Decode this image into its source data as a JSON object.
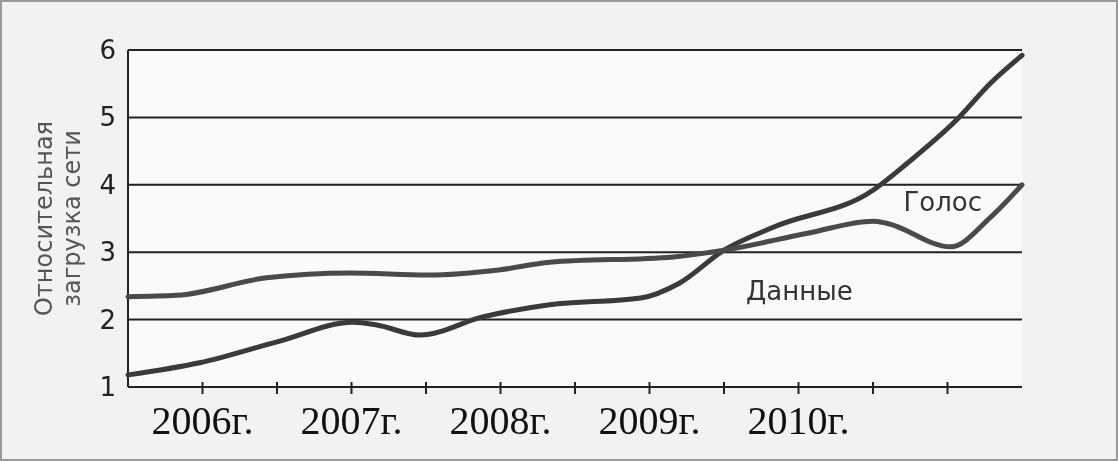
{
  "chart_data": {
    "type": "line",
    "ylabel": "Относительная загрузка сети",
    "xlim": [
      2005.5,
      2011.5
    ],
    "ylim": [
      1,
      6
    ],
    "yticks": [
      1,
      2,
      3,
      4,
      5,
      6
    ],
    "xticks": [
      {
        "value": 2006,
        "label": "2006г."
      },
      {
        "value": 2006.5,
        "label": null
      },
      {
        "value": 2007,
        "label": "2007г."
      },
      {
        "value": 2007.5,
        "label": null
      },
      {
        "value": 2008,
        "label": "2008г."
      },
      {
        "value": 2008.5,
        "label": null
      },
      {
        "value": 2009,
        "label": "2009г."
      },
      {
        "value": 2009.5,
        "label": null
      },
      {
        "value": 2010,
        "label": "2010г."
      },
      {
        "value": 2010.5,
        "label": null
      },
      {
        "value": 2011,
        "label": null
      }
    ],
    "grid": "y",
    "marker": "none",
    "line_style": "solid",
    "series": [
      {
        "name": "Данные",
        "color": "#3a3a3a",
        "x": [
          2005.5,
          2005.98,
          2006.5,
          2007.01,
          2007.17,
          2007.46,
          2007.88,
          2008.33,
          2008.94,
          2009.2,
          2009.5,
          2009.83,
          2010.5,
          2010.73,
          2011.06,
          2011.29,
          2011.5
        ],
        "values": [
          1.18,
          1.36,
          1.67,
          1.96,
          1.92,
          1.77,
          2.04,
          2.22,
          2.32,
          2.54,
          3.03,
          3.37,
          3.92,
          4.32,
          4.96,
          5.51,
          5.92
        ]
      },
      {
        "name": "Голос",
        "color": "#4a4a4a",
        "x": [
          2005.5,
          2005.83,
          2006.43,
          2006.99,
          2007.51,
          2008.0,
          2008.33,
          2009.16,
          2009.5,
          2010.06,
          2010.5,
          2010.59,
          2011.02,
          2011.29,
          2011.5
        ],
        "values": [
          2.34,
          2.36,
          2.62,
          2.69,
          2.66,
          2.74,
          2.85,
          2.93,
          3.03,
          3.28,
          3.46,
          3.43,
          3.08,
          3.52,
          4.0
        ]
      }
    ]
  }
}
